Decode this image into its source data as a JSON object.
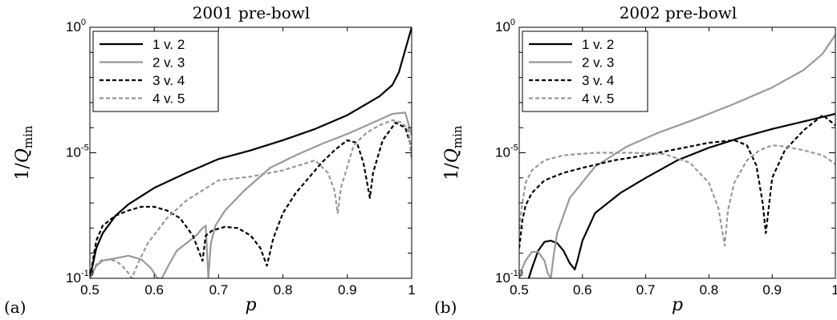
{
  "chart_data": [
    {
      "type": "line",
      "panel_label": "(a)",
      "title": "2001 pre-bowl",
      "xlabel": "p",
      "ylabel": "1/Q",
      "ylabel_subscript": "min",
      "xlim": [
        0.5,
        1.0
      ],
      "ylim": [
        1e-10,
        1
      ],
      "yscale": "log",
      "xticks": [
        "0.5",
        "0.6",
        "0.7",
        "0.8",
        "0.9",
        "1"
      ],
      "yticks": [
        {
          "base": "10",
          "exp": "0",
          "value": 1
        },
        {
          "base": "10",
          "exp": "-5",
          "value": 1e-05
        },
        {
          "base": "10",
          "exp": "-10",
          "value": 1e-10
        }
      ],
      "legend_position": "top-left",
      "series": [
        {
          "name": "1 v. 2",
          "color": "#000000",
          "dash": "solid",
          "x": [
            0.5,
            0.51,
            0.52,
            0.54,
            0.56,
            0.6,
            0.65,
            0.7,
            0.75,
            0.8,
            0.85,
            0.9,
            0.95,
            0.97,
            0.98,
            0.99,
            1.0
          ],
          "y": [
            -10,
            -8.8,
            -8.2,
            -7.5,
            -7.05,
            -6.4,
            -5.8,
            -5.25,
            -4.9,
            -4.5,
            -4.05,
            -3.5,
            -2.75,
            -2.3,
            -1.8,
            -0.9,
            0
          ]
        },
        {
          "name": "2 v. 3",
          "color": "#999999",
          "dash": "solid",
          "x": [
            0.5,
            0.51,
            0.52,
            0.54,
            0.56,
            0.58,
            0.595,
            0.605,
            0.612,
            0.622,
            0.635,
            0.65,
            0.665,
            0.675,
            0.68,
            0.684,
            0.688,
            0.695,
            0.71,
            0.74,
            0.78,
            0.82,
            0.86,
            0.9,
            0.94,
            0.97,
            0.99,
            1.0
          ],
          "y": [
            -10,
            -9.5,
            -9.3,
            -9.2,
            -9.1,
            -9.25,
            -9.6,
            -10,
            -10,
            -9.5,
            -8.9,
            -8.6,
            -8.3,
            -8.0,
            -7.9,
            -10,
            -8.6,
            -7.9,
            -7.3,
            -6.5,
            -5.6,
            -5.1,
            -4.65,
            -4.25,
            -3.8,
            -3.45,
            -3.4,
            -4.3
          ]
        },
        {
          "name": "3 v. 4",
          "color": "#000000",
          "dash": "dashed",
          "x": [
            0.5,
            0.51,
            0.52,
            0.54,
            0.56,
            0.58,
            0.6,
            0.62,
            0.64,
            0.66,
            0.675,
            0.68,
            0.69,
            0.71,
            0.73,
            0.75,
            0.765,
            0.775,
            0.785,
            0.8,
            0.82,
            0.84,
            0.86,
            0.88,
            0.9,
            0.915,
            0.925,
            0.935,
            0.94,
            0.955,
            0.975,
            0.99,
            1.0
          ],
          "y": [
            -10,
            -8.5,
            -7.9,
            -7.5,
            -7.3,
            -7.15,
            -7.15,
            -7.3,
            -7.6,
            -8.3,
            -9.3,
            -8.3,
            -8.1,
            -7.95,
            -8.0,
            -8.3,
            -8.8,
            -9.5,
            -8.4,
            -7.4,
            -6.6,
            -6.0,
            -5.4,
            -4.9,
            -4.5,
            -4.6,
            -5.4,
            -6.8,
            -5.8,
            -4.5,
            -3.8,
            -4.0,
            -4.8
          ]
        },
        {
          "name": "4 v. 5",
          "color": "#999999",
          "dash": "dashed",
          "x": [
            0.5,
            0.51,
            0.52,
            0.54,
            0.55,
            0.56,
            0.565,
            0.575,
            0.59,
            0.62,
            0.65,
            0.7,
            0.75,
            0.8,
            0.85,
            0.87,
            0.88,
            0.885,
            0.89,
            0.91,
            0.93,
            0.95,
            0.97,
            0.985,
            0.995,
            1.0
          ],
          "y": [
            -10,
            -9.45,
            -9.25,
            -9.3,
            -9.5,
            -9.8,
            -10,
            -9.4,
            -8.6,
            -7.6,
            -6.9,
            -6.1,
            -5.95,
            -5.7,
            -5.3,
            -5.8,
            -6.5,
            -7.4,
            -6.4,
            -4.7,
            -4.2,
            -3.9,
            -3.7,
            -3.8,
            -4.1,
            -5.3
          ]
        }
      ]
    },
    {
      "type": "line",
      "panel_label": "(b)",
      "title": "2002 pre-bowl",
      "xlabel": "p",
      "ylabel": "1/Q",
      "ylabel_subscript": "min",
      "xlim": [
        0.5,
        1.0
      ],
      "ylim": [
        1e-10,
        1
      ],
      "yscale": "log",
      "xticks": [
        "0.5",
        "0.6",
        "0.7",
        "0.8",
        "0.9",
        "1"
      ],
      "yticks": [
        {
          "base": "10",
          "exp": "0",
          "value": 1
        },
        {
          "base": "10",
          "exp": "-5",
          "value": 1e-05
        },
        {
          "base": "10",
          "exp": "-10",
          "value": 1e-10
        }
      ],
      "legend_position": "top-left",
      "series": [
        {
          "name": "1 v. 2",
          "color": "#000000",
          "dash": "solid",
          "x": [
            0.515,
            0.52,
            0.53,
            0.54,
            0.55,
            0.56,
            0.57,
            0.58,
            0.588,
            0.592,
            0.6,
            0.62,
            0.66,
            0.7,
            0.75,
            0.8,
            0.85,
            0.9,
            0.95,
            1.0
          ],
          "y": [
            -10,
            -9.6,
            -8.9,
            -8.55,
            -8.5,
            -8.6,
            -8.9,
            -9.4,
            -9.65,
            -9.3,
            -8.5,
            -7.4,
            -6.6,
            -6.0,
            -5.3,
            -4.8,
            -4.4,
            -4.05,
            -3.75,
            -3.45
          ]
        },
        {
          "name": "2 v. 3",
          "color": "#999999",
          "dash": "solid",
          "x": [
            0.5,
            0.505,
            0.51,
            0.52,
            0.53,
            0.54,
            0.545,
            0.55,
            0.555,
            0.56,
            0.58,
            0.62,
            0.67,
            0.72,
            0.78,
            0.84,
            0.9,
            0.95,
            0.98,
            1.0
          ],
          "y": [
            -10,
            -9.6,
            -9.3,
            -8.95,
            -8.95,
            -9.3,
            -9.8,
            -10,
            -9.0,
            -8.2,
            -6.8,
            -5.55,
            -4.75,
            -4.2,
            -3.65,
            -3.05,
            -2.4,
            -1.7,
            -1.05,
            -0.3
          ]
        },
        {
          "name": "3 v. 4",
          "color": "#000000",
          "dash": "dashed",
          "x": [
            0.5,
            0.505,
            0.51,
            0.52,
            0.54,
            0.57,
            0.6,
            0.65,
            0.7,
            0.75,
            0.8,
            0.84,
            0.86,
            0.875,
            0.885,
            0.89,
            0.9,
            0.92,
            0.95,
            0.98,
            1.0
          ],
          "y": [
            -8.8,
            -7.7,
            -7.1,
            -6.6,
            -6.1,
            -5.8,
            -5.6,
            -5.3,
            -5.1,
            -4.85,
            -4.6,
            -4.5,
            -4.7,
            -5.5,
            -7.0,
            -8.2,
            -6.0,
            -4.9,
            -4.1,
            -3.5,
            -3.9
          ]
        },
        {
          "name": "4 v. 5",
          "color": "#999999",
          "dash": "dashed",
          "x": [
            0.5,
            0.505,
            0.51,
            0.52,
            0.54,
            0.57,
            0.62,
            0.68,
            0.73,
            0.77,
            0.8,
            0.815,
            0.825,
            0.83,
            0.84,
            0.86,
            0.88,
            0.9,
            0.92,
            0.95,
            0.98,
            1.0
          ],
          "y": [
            -8.0,
            -7.0,
            -6.2,
            -5.7,
            -5.3,
            -5.1,
            -5.0,
            -5.0,
            -5.05,
            -5.4,
            -6.2,
            -7.2,
            -8.7,
            -7.3,
            -6.2,
            -5.3,
            -4.9,
            -4.7,
            -4.75,
            -4.9,
            -5.1,
            -5.45
          ]
        }
      ]
    }
  ]
}
